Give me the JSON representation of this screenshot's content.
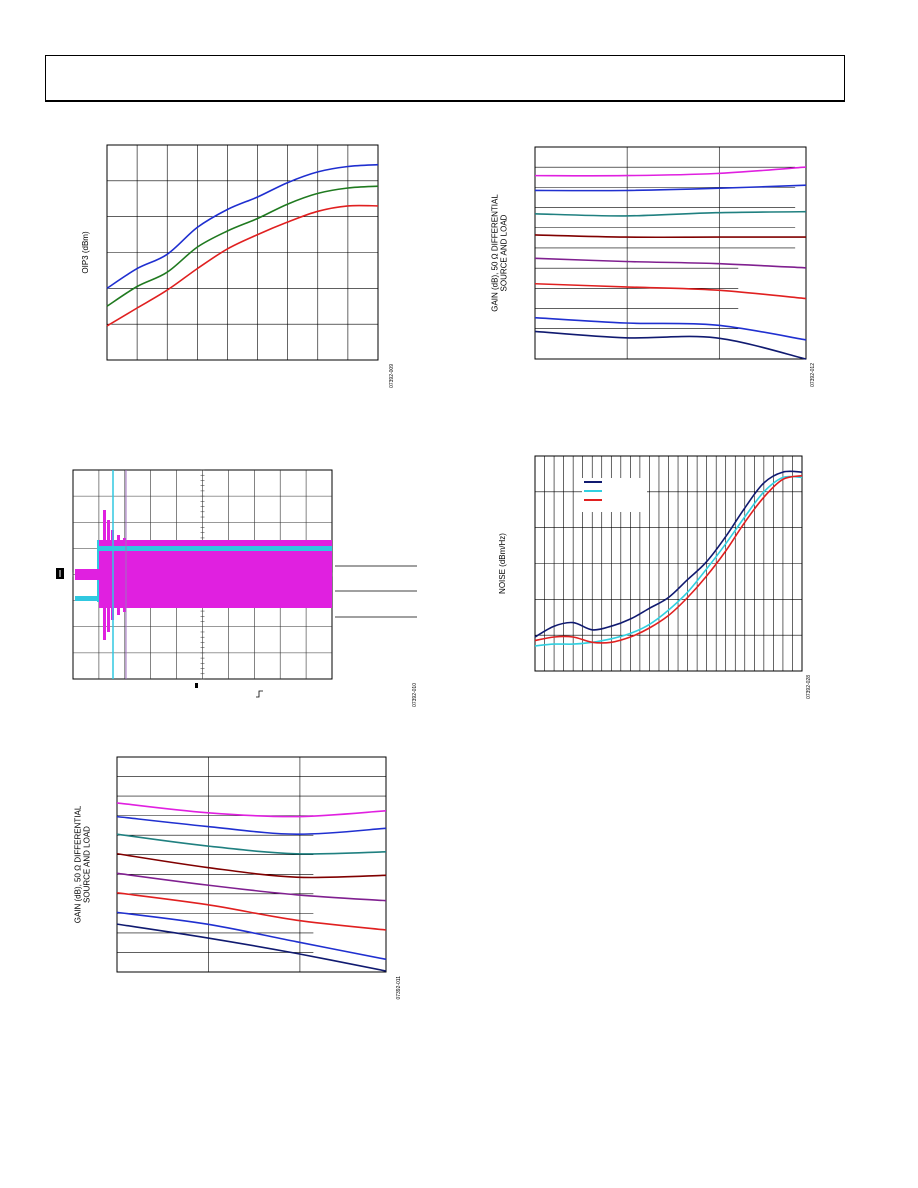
{
  "header": {
    "text": ""
  },
  "chart_data": [
    {
      "id": "oip3",
      "type": "line",
      "ylabel": "OIP3 (dBm)",
      "figure_id": "07392-009",
      "x": [
        0,
        1,
        2,
        3,
        4,
        5,
        6,
        7,
        8,
        9
      ],
      "xlim": [
        0,
        9
      ],
      "ylim": [
        0,
        6
      ],
      "grid": true,
      "series": [
        {
          "color": "#1f2fd0",
          "values": [
            2.0,
            2.55,
            2.95,
            3.7,
            4.2,
            4.55,
            4.95,
            5.25,
            5.4,
            5.45
          ]
        },
        {
          "color": "#207a20",
          "values": [
            1.5,
            2.05,
            2.45,
            3.15,
            3.6,
            3.95,
            4.35,
            4.65,
            4.8,
            4.85
          ]
        },
        {
          "color": "#e02020",
          "values": [
            0.95,
            1.45,
            1.95,
            2.55,
            3.1,
            3.5,
            3.85,
            4.15,
            4.3,
            4.3
          ]
        }
      ]
    },
    {
      "id": "gain-upper",
      "type": "line",
      "ylabel": "GAIN (dB), 50 Ω DIFFERENTIAL\nSOURCE AND LOAD",
      "figure_id": "07392-012",
      "x": [
        0,
        1,
        2,
        3
      ],
      "xlim": [
        0,
        3
      ],
      "ylim": [
        0,
        10
      ],
      "series": [
        {
          "color": "#e020e0",
          "values": [
            8.65,
            8.65,
            8.75,
            9.05
          ]
        },
        {
          "color": "#2030d0",
          "values": [
            7.95,
            7.95,
            8.05,
            8.2
          ]
        },
        {
          "color": "#208080",
          "values": [
            6.85,
            6.75,
            6.9,
            6.95
          ]
        },
        {
          "color": "#800000",
          "values": [
            5.85,
            5.75,
            5.75,
            5.75
          ]
        },
        {
          "color": "#802090",
          "values": [
            4.75,
            4.6,
            4.5,
            4.3
          ]
        },
        {
          "color": "#e02020",
          "values": [
            3.55,
            3.4,
            3.25,
            2.85
          ]
        },
        {
          "color": "#2030d0",
          "values": [
            1.95,
            1.7,
            1.6,
            0.9
          ]
        },
        {
          "color": "#101a70",
          "values": [
            1.3,
            1.0,
            1.0,
            0.0
          ]
        }
      ]
    },
    {
      "id": "transient",
      "type": "line",
      "figure_id": "07392-010",
      "channels": [
        {
          "color": "#e020e0"
        },
        {
          "color": "#30c8e0"
        }
      ]
    },
    {
      "id": "noise",
      "type": "line",
      "ylabel": "NOISE (dBm/Hz)",
      "figure_id": "07392-028",
      "x": [
        0,
        0.5,
        1,
        1.5,
        2,
        2.5,
        3,
        3.5,
        4,
        4.5,
        5,
        5.5,
        6,
        6.5,
        7
      ],
      "xlim": [
        0,
        7
      ],
      "ylim": [
        0,
        6
      ],
      "grid": true,
      "series": [
        {
          "color": "#101a70",
          "values": [
            0.95,
            1.25,
            1.35,
            1.15,
            1.25,
            1.45,
            1.75,
            2.05,
            2.55,
            3.05,
            3.75,
            4.55,
            5.25,
            5.55,
            5.55
          ]
        },
        {
          "color": "#30d0e0",
          "values": [
            0.7,
            0.75,
            0.75,
            0.8,
            0.9,
            1.05,
            1.3,
            1.7,
            2.2,
            2.85,
            3.55,
            4.3,
            5.0,
            5.4,
            5.4
          ]
        },
        {
          "color": "#e02020",
          "values": [
            0.85,
            0.95,
            0.95,
            0.8,
            0.8,
            0.95,
            1.2,
            1.55,
            2.05,
            2.65,
            3.35,
            4.15,
            4.85,
            5.35,
            5.45
          ]
        }
      ]
    },
    {
      "id": "gain-lower",
      "type": "line",
      "ylabel": "GAIN (dB), 50 Ω DIFFERENTIAL\nSOURCE AND LOAD",
      "figure_id": "07392-011",
      "x": [
        0,
        1,
        2,
        3
      ],
      "xlim": [
        0,
        3
      ],
      "ylim": [
        0,
        11
      ],
      "series": [
        {
          "color": "#e020e0",
          "values": [
            8.65,
            8.15,
            7.95,
            8.25
          ]
        },
        {
          "color": "#2030d0",
          "values": [
            7.95,
            7.45,
            7.05,
            7.35
          ]
        },
        {
          "color": "#208080",
          "values": [
            7.05,
            6.45,
            6.05,
            6.15
          ]
        },
        {
          "color": "#800000",
          "values": [
            6.05,
            5.35,
            4.85,
            4.95
          ]
        },
        {
          "color": "#802090",
          "values": [
            5.05,
            4.45,
            3.95,
            3.65
          ]
        },
        {
          "color": "#e02020",
          "values": [
            4.05,
            3.45,
            2.65,
            2.15
          ]
        },
        {
          "color": "#2030d0",
          "values": [
            3.05,
            2.45,
            1.55,
            0.65
          ]
        },
        {
          "color": "#101a70",
          "values": [
            2.45,
            1.75,
            0.95,
            0.05
          ]
        }
      ]
    }
  ]
}
